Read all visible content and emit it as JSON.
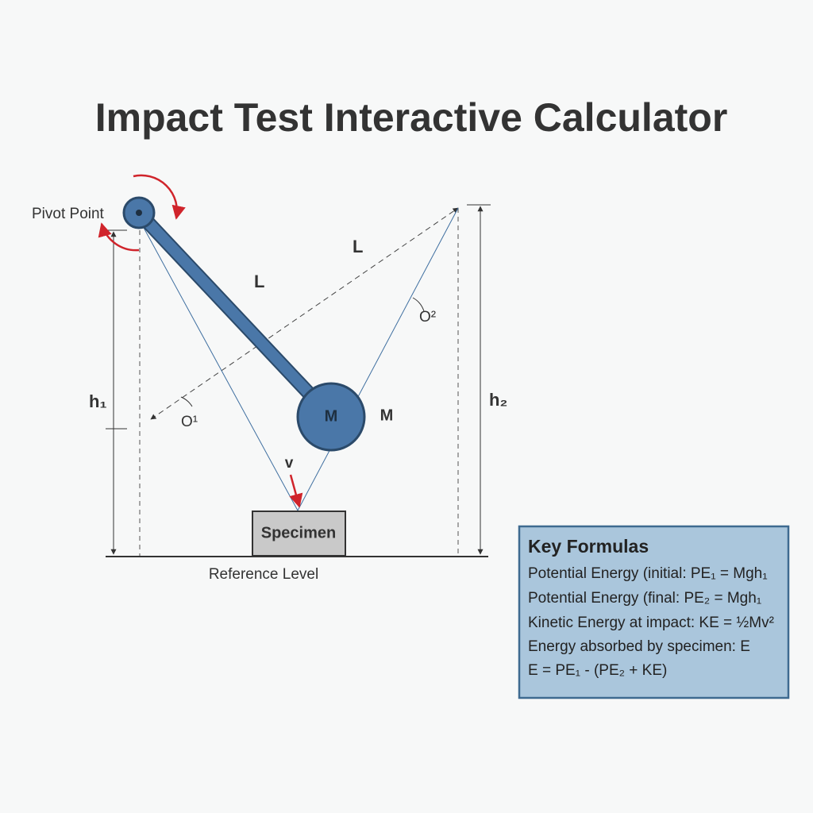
{
  "title": "Impact Test Interactive Calculator",
  "diagram": {
    "pivot_label": "Pivot Point",
    "length_labels": [
      "L",
      "L"
    ],
    "angle_labels": [
      "O¹",
      "O²"
    ],
    "height_labels": [
      "h₁",
      "h₂"
    ],
    "mass_labels": [
      "M",
      "M"
    ],
    "velocity_label": "v",
    "specimen_label": "Specimen",
    "reference_label": "Reference Level"
  },
  "formulas": {
    "heading": "Key Formulas",
    "lines": [
      "Potential Energy (initial: PE₁ = Mgh₁",
      "Potential Energy (final: PE₂ = Mgh₁",
      "Kinetic Energy at impact: KE = ½Mv²",
      "Energy absorbed by specimen: E",
      "E = PE₁ - (PE₂ + KE)"
    ]
  }
}
